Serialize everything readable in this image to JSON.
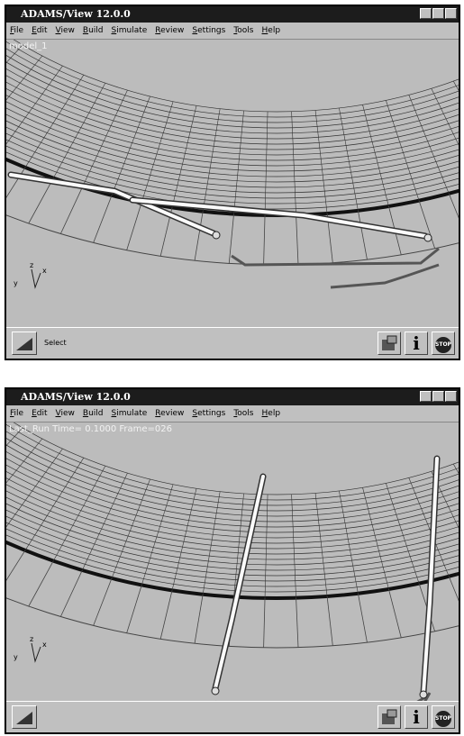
{
  "windows": [
    {
      "title": "ADAMS/View 12.0.0",
      "menu": [
        "File",
        "Edit",
        "View",
        "Build",
        "Simulate",
        "Review",
        "Settings",
        "Tools",
        "Help"
      ],
      "viewport_label": "model_1",
      "triad": {
        "z": "z",
        "x": "x",
        "y": "y"
      },
      "status_text": "Select",
      "buttons": {
        "info": "i",
        "stop": "STOP"
      }
    },
    {
      "title": "ADAMS/View 12.0.0",
      "menu": [
        "File",
        "Edit",
        "View",
        "Build",
        "Simulate",
        "Review",
        "Settings",
        "Tools",
        "Help"
      ],
      "viewport_label": "Last_Run   Time= 0.1000  Frame=026",
      "triad": {
        "z": "z",
        "x": "x",
        "y": "y"
      },
      "buttons": {
        "info": "i",
        "stop": "STOP"
      }
    }
  ]
}
